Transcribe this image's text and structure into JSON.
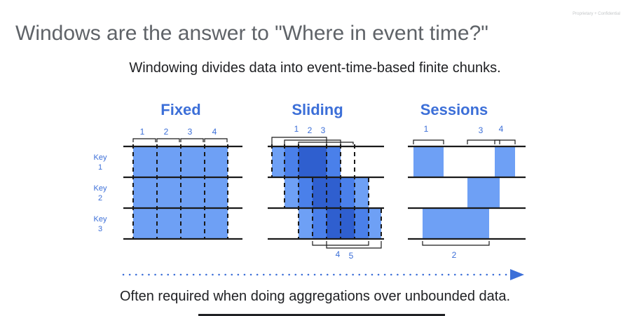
{
  "title": "Windows are the answer to \"Where in event time?\"",
  "confidential": "Proprietary + Confidential",
  "subtitle": "Windowing divides data into event-time-based finite chunks.",
  "footer": "Often required when doing aggregations over unbounded data.",
  "keys": [
    {
      "line1": "Key",
      "line2": "1"
    },
    {
      "line1": "Key",
      "line2": "2"
    },
    {
      "line1": "Key",
      "line2": "3"
    }
  ],
  "panels": {
    "fixed": {
      "title": "Fixed",
      "windows": [
        "1",
        "2",
        "3",
        "4"
      ]
    },
    "sliding": {
      "title": "Sliding",
      "windows_top": [
        "1",
        "2",
        "3"
      ],
      "windows_bottom": [
        "4",
        "5"
      ]
    },
    "sessions": {
      "title": "Sessions",
      "windows_top": [
        "1",
        "3",
        "4"
      ],
      "windows_bottom": [
        "2"
      ]
    }
  },
  "colors": {
    "title": "#5f6368",
    "accent": "#3c6fd8",
    "block_light": "#6ea0f5",
    "block_mid": "#4a80ea",
    "block_dark": "#2f5fcf",
    "block_darkest": "#1e45b0",
    "line": "#1a1a1a"
  }
}
